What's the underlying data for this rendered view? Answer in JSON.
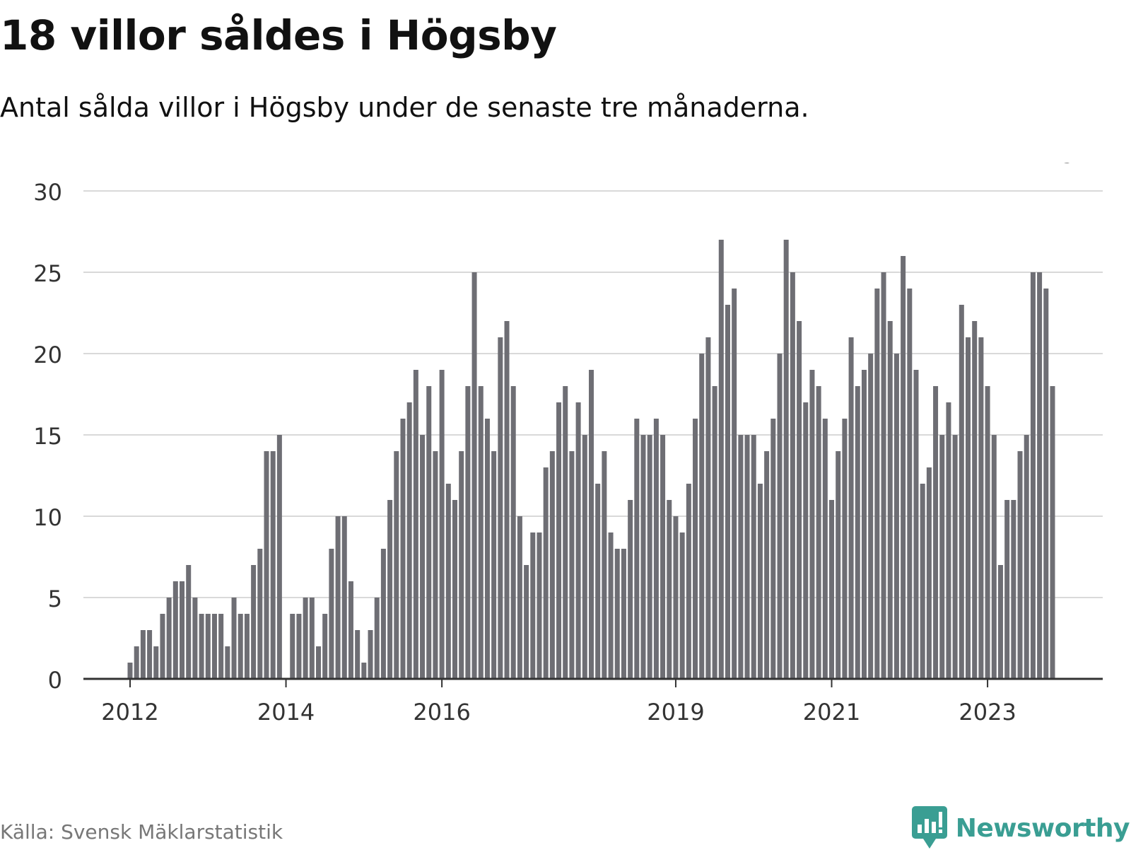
{
  "header": {
    "title": "18 villor såldes i Högsby",
    "subtitle": "Antal sålda villor i Högsby under de senaste tre månaderna."
  },
  "footer": {
    "source": "Källa: Svensk Mäklarstatistik",
    "brand": "Newsworthy",
    "brand_icon": "bar-chart-speech-icon"
  },
  "colors": {
    "bar": "#6e6e74",
    "highlight": "#1aa39a",
    "grid": "#d9d9d9",
    "axis": "#333333",
    "brand": "#3a9e93"
  },
  "chart_data": {
    "type": "bar",
    "title": "18 villor såldes i Högsby",
    "xlabel": "",
    "ylabel": "",
    "ylim": [
      0,
      30
    ],
    "yticks": [
      0,
      5,
      10,
      15,
      20,
      25,
      30
    ],
    "grid": true,
    "xticks": [
      {
        "label": "2012",
        "index": 0
      },
      {
        "label": "2014",
        "index": 24
      },
      {
        "label": "2016",
        "index": 48
      },
      {
        "label": "2019",
        "index": 84
      },
      {
        "label": "2021",
        "index": 108
      },
      {
        "label": "2023",
        "index": 132
      }
    ],
    "highlight": {
      "index": 143,
      "label": "18"
    },
    "values": [
      1,
      2,
      3,
      3,
      2,
      4,
      5,
      6,
      6,
      7,
      5,
      4,
      4,
      4,
      4,
      2,
      5,
      4,
      4,
      7,
      8,
      14,
      14,
      15,
      0,
      4,
      4,
      5,
      5,
      2,
      4,
      8,
      10,
      10,
      6,
      3,
      1,
      3,
      5,
      8,
      11,
      14,
      16,
      17,
      19,
      15,
      18,
      14,
      19,
      12,
      11,
      14,
      18,
      25,
      18,
      16,
      14,
      21,
      22,
      18,
      10,
      7,
      9,
      9,
      13,
      14,
      17,
      18,
      14,
      17,
      15,
      19,
      12,
      14,
      9,
      8,
      8,
      11,
      16,
      15,
      15,
      16,
      15,
      11,
      10,
      9,
      12,
      16,
      20,
      21,
      18,
      27,
      23,
      24,
      15,
      15,
      15,
      12,
      14,
      16,
      20,
      27,
      25,
      22,
      17,
      19,
      18,
      16,
      11,
      14,
      16,
      21,
      18,
      19,
      20,
      24,
      25,
      22,
      20,
      26,
      24,
      19,
      12,
      13,
      18,
      15,
      17,
      15,
      23,
      21,
      22,
      21,
      18,
      15,
      7,
      11,
      11,
      14,
      15,
      25,
      25,
      24,
      18
    ]
  }
}
